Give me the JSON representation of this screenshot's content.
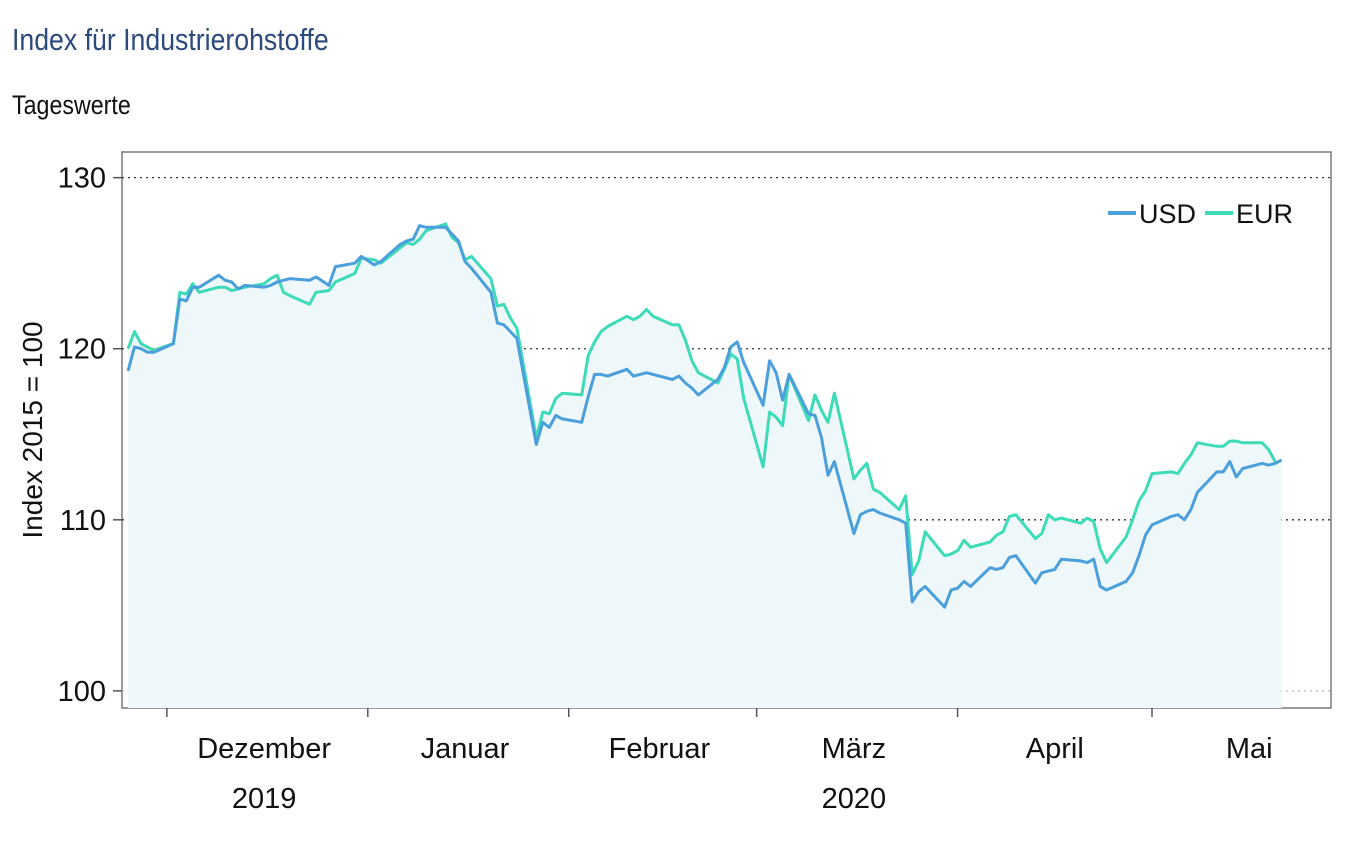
{
  "title": "Index für Industrierohstoffe",
  "subtitle": "Tageswerte",
  "chart_data": {
    "type": "line",
    "ylabel": "Index 2015 = 100",
    "ylim": [
      99,
      131.5
    ],
    "yticks": [
      100,
      110,
      120,
      130
    ],
    "grid": "horizontal dotted",
    "legend_position": "top-right",
    "x_start": "2019-11-25",
    "x_end": "2020-05-28",
    "x_month_ticks": [
      "2019-12-01",
      "2020-01-01",
      "2020-02-01",
      "2020-03-01",
      "2020-04-01",
      "2020-05-01",
      "2020-06-01"
    ],
    "x_labels": [
      {
        "date": "2019-12-16",
        "text": "Dezember"
      },
      {
        "date": "2020-01-16",
        "text": "Januar"
      },
      {
        "date": "2020-02-15",
        "text": "Februar"
      },
      {
        "date": "2020-03-16",
        "text": "März"
      },
      {
        "date": "2020-04-16",
        "text": "April"
      },
      {
        "date": "2020-05-16",
        "text": "Mai"
      }
    ],
    "x_year_labels": [
      {
        "date": "2019-12-16",
        "text": "2019"
      },
      {
        "date": "2020-03-16",
        "text": "2020"
      }
    ],
    "series": [
      {
        "name": "USD",
        "color": "#4b9fdb",
        "points": [
          [
            "2019-11-25",
            118.7
          ],
          [
            "2019-11-26",
            120.1
          ],
          [
            "2019-11-27",
            120.0
          ],
          [
            "2019-11-28",
            119.8
          ],
          [
            "2019-11-29",
            119.8
          ],
          [
            "2019-12-02",
            120.3
          ],
          [
            "2019-12-03",
            122.9
          ],
          [
            "2019-12-04",
            122.8
          ],
          [
            "2019-12-05",
            123.6
          ],
          [
            "2019-12-06",
            123.6
          ],
          [
            "2019-12-09",
            124.3
          ],
          [
            "2019-12-10",
            124.0
          ],
          [
            "2019-12-11",
            123.9
          ],
          [
            "2019-12-12",
            123.5
          ],
          [
            "2019-12-13",
            123.7
          ],
          [
            "2019-12-16",
            123.6
          ],
          [
            "2019-12-17",
            123.7
          ],
          [
            "2019-12-18",
            123.9
          ],
          [
            "2019-12-19",
            124.0
          ],
          [
            "2019-12-20",
            124.1
          ],
          [
            "2019-12-23",
            124.0
          ],
          [
            "2019-12-24",
            124.2
          ],
          [
            "2019-12-26",
            123.7
          ],
          [
            "2019-12-27",
            124.8
          ],
          [
            "2019-12-30",
            125.0
          ],
          [
            "2019-12-31",
            125.4
          ],
          [
            "2020-01-02",
            124.9
          ],
          [
            "2020-01-03",
            125.1
          ],
          [
            "2020-01-06",
            126.1
          ],
          [
            "2020-01-07",
            126.3
          ],
          [
            "2020-01-08",
            126.4
          ],
          [
            "2020-01-09",
            127.2
          ],
          [
            "2020-01-10",
            127.1
          ],
          [
            "2020-01-13",
            127.1
          ],
          [
            "2020-01-14",
            126.7
          ],
          [
            "2020-01-15",
            126.3
          ],
          [
            "2020-01-16",
            125.1
          ],
          [
            "2020-01-17",
            124.7
          ],
          [
            "2020-01-20",
            123.3
          ],
          [
            "2020-01-21",
            121.5
          ],
          [
            "2020-01-22",
            121.4
          ],
          [
            "2020-01-23",
            121.0
          ],
          [
            "2020-01-24",
            120.6
          ],
          [
            "2020-01-27",
            114.4
          ],
          [
            "2020-01-28",
            115.7
          ],
          [
            "2020-01-29",
            115.4
          ],
          [
            "2020-01-30",
            116.1
          ],
          [
            "2020-01-31",
            115.9
          ],
          [
            "2020-02-03",
            115.7
          ],
          [
            "2020-02-04",
            117.2
          ],
          [
            "2020-02-05",
            118.5
          ],
          [
            "2020-02-06",
            118.5
          ],
          [
            "2020-02-07",
            118.4
          ],
          [
            "2020-02-10",
            118.8
          ],
          [
            "2020-02-11",
            118.4
          ],
          [
            "2020-02-12",
            118.5
          ],
          [
            "2020-02-13",
            118.6
          ],
          [
            "2020-02-14",
            118.5
          ],
          [
            "2020-02-17",
            118.2
          ],
          [
            "2020-02-18",
            118.4
          ],
          [
            "2020-02-19",
            118.0
          ],
          [
            "2020-02-20",
            117.7
          ],
          [
            "2020-02-21",
            117.3
          ],
          [
            "2020-02-24",
            118.2
          ],
          [
            "2020-02-25",
            118.9
          ],
          [
            "2020-02-26",
            120.1
          ],
          [
            "2020-02-27",
            120.4
          ],
          [
            "2020-02-28",
            119.2
          ],
          [
            "2020-03-02",
            116.7
          ],
          [
            "2020-03-03",
            119.3
          ],
          [
            "2020-03-04",
            118.6
          ],
          [
            "2020-03-05",
            117.0
          ],
          [
            "2020-03-06",
            118.5
          ],
          [
            "2020-03-09",
            116.2
          ],
          [
            "2020-03-10",
            116.1
          ],
          [
            "2020-03-11",
            114.8
          ],
          [
            "2020-03-12",
            112.6
          ],
          [
            "2020-03-13",
            113.4
          ],
          [
            "2020-03-16",
            109.2
          ],
          [
            "2020-03-17",
            110.3
          ],
          [
            "2020-03-18",
            110.5
          ],
          [
            "2020-03-19",
            110.6
          ],
          [
            "2020-03-20",
            110.4
          ],
          [
            "2020-03-23",
            110.0
          ],
          [
            "2020-03-24",
            109.8
          ],
          [
            "2020-03-25",
            105.2
          ],
          [
            "2020-03-26",
            105.8
          ],
          [
            "2020-03-27",
            106.1
          ],
          [
            "2020-03-30",
            104.9
          ],
          [
            "2020-03-31",
            105.9
          ],
          [
            "2020-04-01",
            106.0
          ],
          [
            "2020-04-02",
            106.4
          ],
          [
            "2020-04-03",
            106.1
          ],
          [
            "2020-04-06",
            107.2
          ],
          [
            "2020-04-07",
            107.1
          ],
          [
            "2020-04-08",
            107.2
          ],
          [
            "2020-04-09",
            107.8
          ],
          [
            "2020-04-10",
            107.9
          ],
          [
            "2020-04-13",
            106.3
          ],
          [
            "2020-04-14",
            106.9
          ],
          [
            "2020-04-15",
            107.0
          ],
          [
            "2020-04-16",
            107.1
          ],
          [
            "2020-04-17",
            107.7
          ],
          [
            "2020-04-20",
            107.6
          ],
          [
            "2020-04-21",
            107.5
          ],
          [
            "2020-04-22",
            107.7
          ],
          [
            "2020-04-23",
            106.1
          ],
          [
            "2020-04-24",
            105.9
          ],
          [
            "2020-04-27",
            106.4
          ],
          [
            "2020-04-28",
            106.9
          ],
          [
            "2020-04-29",
            107.9
          ],
          [
            "2020-04-30",
            109.1
          ],
          [
            "2020-05-01",
            109.7
          ],
          [
            "2020-05-04",
            110.2
          ],
          [
            "2020-05-05",
            110.3
          ],
          [
            "2020-05-06",
            110.0
          ],
          [
            "2020-05-07",
            110.6
          ],
          [
            "2020-05-08",
            111.6
          ],
          [
            "2020-05-11",
            112.8
          ],
          [
            "2020-05-12",
            112.8
          ],
          [
            "2020-05-13",
            113.4
          ],
          [
            "2020-05-14",
            112.5
          ],
          [
            "2020-05-15",
            113.0
          ],
          [
            "2020-05-18",
            113.3
          ],
          [
            "2020-05-19",
            113.2
          ],
          [
            "2020-05-20",
            113.3
          ],
          [
            "2020-05-21",
            113.5
          ]
        ]
      },
      {
        "name": "EUR",
        "color": "#3ddbb8",
        "points": [
          [
            "2019-11-25",
            120.0
          ],
          [
            "2019-11-26",
            121.0
          ],
          [
            "2019-11-27",
            120.3
          ],
          [
            "2019-11-28",
            120.1
          ],
          [
            "2019-11-29",
            119.9
          ],
          [
            "2019-12-02",
            120.3
          ],
          [
            "2019-12-03",
            123.3
          ],
          [
            "2019-12-04",
            123.2
          ],
          [
            "2019-12-05",
            123.8
          ],
          [
            "2019-12-06",
            123.3
          ],
          [
            "2019-12-09",
            123.6
          ],
          [
            "2019-12-10",
            123.6
          ],
          [
            "2019-12-11",
            123.4
          ],
          [
            "2019-12-12",
            123.5
          ],
          [
            "2019-12-13",
            123.6
          ],
          [
            "2019-12-16",
            123.8
          ],
          [
            "2019-12-17",
            124.1
          ],
          [
            "2019-12-18",
            124.3
          ],
          [
            "2019-12-19",
            123.3
          ],
          [
            "2019-12-20",
            123.1
          ],
          [
            "2019-12-23",
            122.6
          ],
          [
            "2019-12-24",
            123.3
          ],
          [
            "2019-12-26",
            123.4
          ],
          [
            "2019-12-27",
            123.9
          ],
          [
            "2019-12-30",
            124.4
          ],
          [
            "2019-12-31",
            125.3
          ],
          [
            "2020-01-02",
            125.2
          ],
          [
            "2020-01-03",
            125.0
          ],
          [
            "2020-01-06",
            125.9
          ],
          [
            "2020-01-07",
            126.2
          ],
          [
            "2020-01-08",
            126.1
          ],
          [
            "2020-01-09",
            126.4
          ],
          [
            "2020-01-10",
            126.9
          ],
          [
            "2020-01-13",
            127.3
          ],
          [
            "2020-01-14",
            126.5
          ],
          [
            "2020-01-15",
            126.2
          ],
          [
            "2020-01-16",
            125.2
          ],
          [
            "2020-01-17",
            125.4
          ],
          [
            "2020-01-20",
            124.1
          ],
          [
            "2020-01-21",
            122.5
          ],
          [
            "2020-01-22",
            122.6
          ],
          [
            "2020-01-23",
            121.8
          ],
          [
            "2020-01-24",
            121.2
          ],
          [
            "2020-01-27",
            114.8
          ],
          [
            "2020-01-28",
            116.3
          ],
          [
            "2020-01-29",
            116.2
          ],
          [
            "2020-01-30",
            117.1
          ],
          [
            "2020-01-31",
            117.4
          ],
          [
            "2020-02-03",
            117.3
          ],
          [
            "2020-02-04",
            119.6
          ],
          [
            "2020-02-05",
            120.4
          ],
          [
            "2020-02-06",
            121.0
          ],
          [
            "2020-02-07",
            121.3
          ],
          [
            "2020-02-10",
            121.9
          ],
          [
            "2020-02-11",
            121.7
          ],
          [
            "2020-02-12",
            121.9
          ],
          [
            "2020-02-13",
            122.3
          ],
          [
            "2020-02-14",
            121.9
          ],
          [
            "2020-02-17",
            121.4
          ],
          [
            "2020-02-18",
            121.4
          ],
          [
            "2020-02-19",
            120.5
          ],
          [
            "2020-02-20",
            119.3
          ],
          [
            "2020-02-21",
            118.6
          ],
          [
            "2020-02-24",
            118.0
          ],
          [
            "2020-02-25",
            118.8
          ],
          [
            "2020-02-26",
            119.7
          ],
          [
            "2020-02-27",
            119.4
          ],
          [
            "2020-02-28",
            117.1
          ],
          [
            "2020-03-02",
            113.1
          ],
          [
            "2020-03-03",
            116.3
          ],
          [
            "2020-03-04",
            116.0
          ],
          [
            "2020-03-05",
            115.5
          ],
          [
            "2020-03-06",
            118.5
          ],
          [
            "2020-03-09",
            115.8
          ],
          [
            "2020-03-10",
            117.3
          ],
          [
            "2020-03-11",
            116.4
          ],
          [
            "2020-03-12",
            115.7
          ],
          [
            "2020-03-13",
            117.4
          ],
          [
            "2020-03-16",
            112.4
          ],
          [
            "2020-03-17",
            112.9
          ],
          [
            "2020-03-18",
            113.3
          ],
          [
            "2020-03-19",
            111.8
          ],
          [
            "2020-03-20",
            111.6
          ],
          [
            "2020-03-23",
            110.6
          ],
          [
            "2020-03-24",
            111.4
          ],
          [
            "2020-03-25",
            106.8
          ],
          [
            "2020-03-26",
            107.6
          ],
          [
            "2020-03-27",
            109.3
          ],
          [
            "2020-03-30",
            107.9
          ],
          [
            "2020-03-31",
            108.0
          ],
          [
            "2020-04-01",
            108.2
          ],
          [
            "2020-04-02",
            108.8
          ],
          [
            "2020-04-03",
            108.4
          ],
          [
            "2020-04-06",
            108.7
          ],
          [
            "2020-04-07",
            109.1
          ],
          [
            "2020-04-08",
            109.3
          ],
          [
            "2020-04-09",
            110.2
          ],
          [
            "2020-04-10",
            110.3
          ],
          [
            "2020-04-13",
            108.9
          ],
          [
            "2020-04-14",
            109.2
          ],
          [
            "2020-04-15",
            110.3
          ],
          [
            "2020-04-16",
            110.0
          ],
          [
            "2020-04-17",
            110.1
          ],
          [
            "2020-04-20",
            109.8
          ],
          [
            "2020-04-21",
            110.1
          ],
          [
            "2020-04-22",
            109.9
          ],
          [
            "2020-04-23",
            108.3
          ],
          [
            "2020-04-24",
            107.5
          ],
          [
            "2020-04-27",
            109.0
          ],
          [
            "2020-04-28",
            110.0
          ],
          [
            "2020-04-29",
            111.1
          ],
          [
            "2020-04-30",
            111.7
          ],
          [
            "2020-05-01",
            112.7
          ],
          [
            "2020-05-04",
            112.8
          ],
          [
            "2020-05-05",
            112.7
          ],
          [
            "2020-05-06",
            113.3
          ],
          [
            "2020-05-07",
            113.8
          ],
          [
            "2020-05-08",
            114.5
          ],
          [
            "2020-05-11",
            114.3
          ],
          [
            "2020-05-12",
            114.3
          ],
          [
            "2020-05-13",
            114.6
          ],
          [
            "2020-05-14",
            114.6
          ],
          [
            "2020-05-15",
            114.5
          ],
          [
            "2020-05-18",
            114.5
          ],
          [
            "2020-05-19",
            114.1
          ],
          [
            "2020-05-20",
            113.4
          ]
        ]
      }
    ],
    "fill_color": "#eef7f9"
  }
}
